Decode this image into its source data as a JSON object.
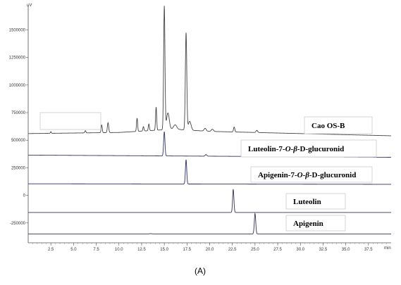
{
  "chart_data": {
    "type": "line",
    "title": "",
    "y_unit": "uV",
    "x_unit": "min",
    "panel_label": "(A)",
    "xlim": [
      0,
      40
    ],
    "ylim": [
      -430000,
      1720000
    ],
    "x_ticks": [
      2.5,
      5.0,
      7.5,
      10.0,
      12.5,
      15.0,
      17.5,
      20.0,
      22.5,
      25.0,
      27.5,
      30.0,
      32.5,
      35.0,
      37.5
    ],
    "x_tick_labels": [
      "2.5",
      "5.0",
      "7.5",
      "10.0",
      "12.5",
      "15.0",
      "17.5",
      "20.0",
      "22.5",
      "25.0",
      "27.5",
      "30.0",
      "32.5",
      "35.0",
      "37.5"
    ],
    "y_ticks": [
      -250000,
      0,
      250000,
      500000,
      750000,
      1000000,
      1250000,
      1500000
    ],
    "y_tick_labels": [
      "-250000",
      "0",
      "250000",
      "500000",
      "750000",
      "1000000",
      "1250000",
      "1500000"
    ],
    "grid": false,
    "legend": "none",
    "series": [
      {
        "name": "Cao OS-B",
        "color": "#444444",
        "baseline": [
          [
            0,
            560000
          ],
          [
            10,
            570000
          ],
          [
            16,
            600000
          ],
          [
            20,
            580000
          ],
          [
            30,
            560000
          ],
          [
            40,
            540000
          ]
        ],
        "peaks": [
          [
            2.5,
            15000,
            0.08
          ],
          [
            6.3,
            20000,
            0.1
          ],
          [
            8.1,
            70000,
            0.1
          ],
          [
            8.8,
            90000,
            0.12
          ],
          [
            12.0,
            120000,
            0.1
          ],
          [
            12.7,
            40000,
            0.1
          ],
          [
            13.3,
            60000,
            0.1
          ],
          [
            14.1,
            210000,
            0.1
          ],
          [
            15.0,
            1120000,
            0.12
          ],
          [
            15.4,
            150000,
            0.25
          ],
          [
            16.2,
            40000,
            0.3
          ],
          [
            17.4,
            880000,
            0.13
          ],
          [
            17.8,
            80000,
            0.25
          ],
          [
            19.5,
            25000,
            0.2
          ],
          [
            20.3,
            20000,
            0.2
          ],
          [
            22.7,
            45000,
            0.12
          ],
          [
            25.2,
            20000,
            0.15
          ]
        ]
      },
      {
        "name": "Luteolin-7-O-β-D-glucuronid",
        "color": "#333366",
        "baseline": [
          [
            0,
            365000
          ],
          [
            40,
            345000
          ]
        ],
        "peaks": [
          [
            15.0,
            220000,
            0.12
          ],
          [
            19.6,
            15000,
            0.15
          ]
        ]
      },
      {
        "name": "Apigenin-7-O-β-D-glucuronid",
        "color": "#2c2c66",
        "baseline": [
          [
            0,
            105000
          ],
          [
            40,
            100000
          ]
        ],
        "peaks": [
          [
            17.4,
            220000,
            0.12
          ]
        ]
      },
      {
        "name": "Luteolin",
        "color": "#333355",
        "baseline": [
          [
            0,
            -155000
          ],
          [
            40,
            -155000
          ]
        ],
        "peaks": [
          [
            22.6,
            210000,
            0.12
          ]
        ]
      },
      {
        "name": "Apigenin",
        "color": "#333355",
        "baseline": [
          [
            0,
            -350000
          ],
          [
            40,
            -350000
          ]
        ],
        "peaks": [
          [
            13.5,
            3000,
            0.2
          ],
          [
            25.0,
            185000,
            0.13
          ]
        ]
      }
    ],
    "trace_label_parts": [
      [
        {
          "t": "Cao OS-B",
          "i": false
        }
      ],
      [
        {
          "t": "Luteolin-7-",
          "i": false
        },
        {
          "t": "O",
          "i": true
        },
        {
          "t": "-",
          "i": false
        },
        {
          "t": "β",
          "i": true
        },
        {
          "t": "-D-glucuronid",
          "i": false
        }
      ],
      [
        {
          "t": "Apigenin-7-",
          "i": false
        },
        {
          "t": "O",
          "i": true
        },
        {
          "t": "-",
          "i": false
        },
        {
          "t": "β",
          "i": true
        },
        {
          "t": "-D-glucuronid",
          "i": false
        }
      ],
      [
        {
          "t": "Luteolin",
          "i": false
        }
      ],
      [
        {
          "t": "Apigenin",
          "i": false
        }
      ]
    ]
  }
}
